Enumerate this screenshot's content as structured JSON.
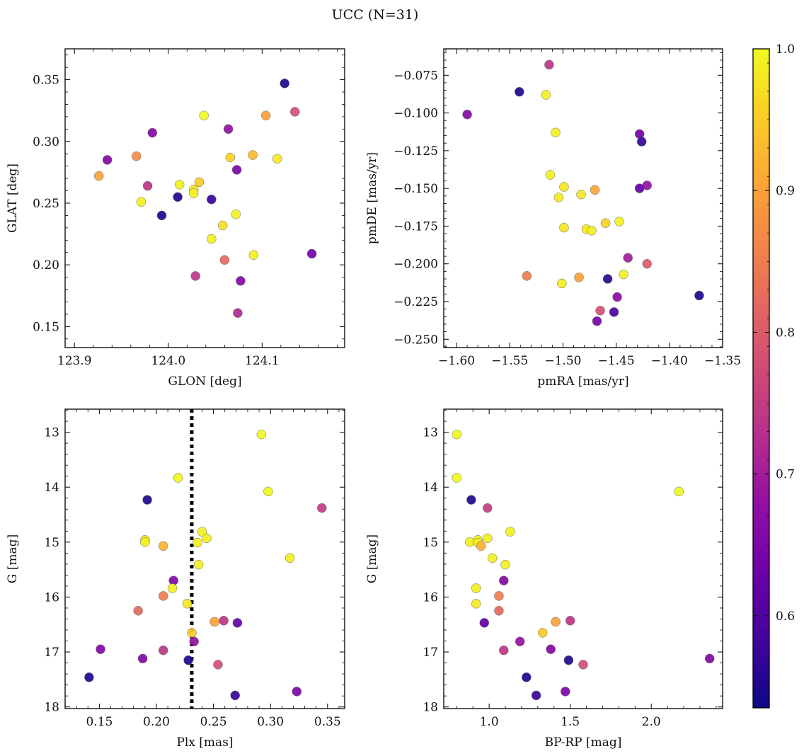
{
  "figure": {
    "title": "UCC (N=31)",
    "colorbar": {
      "min": 0.535,
      "max": 1.0,
      "ticks": [
        "0.6",
        "0.7",
        "0.8",
        "0.9",
        "1.0"
      ],
      "tick_values": [
        0.6,
        0.7,
        0.8,
        0.9,
        1.0
      ],
      "colormap": "plasma"
    }
  },
  "chart_data": [
    {
      "type": "scatter",
      "xlabel": "GLON [deg]",
      "ylabel": "GLAT [deg]",
      "xlim": [
        123.89,
        124.188
      ],
      "ylim": [
        0.133,
        0.375
      ],
      "y_inverted": false,
      "xticks": [
        123.9,
        124.0,
        124.1
      ],
      "xtick_labels": [
        "123.9",
        "124.0",
        "124.1"
      ],
      "yticks": [
        0.15,
        0.2,
        0.25,
        0.3,
        0.35
      ],
      "ytick_labels": [
        "0.15",
        "0.20",
        "0.25",
        "0.30",
        "0.35"
      ],
      "points": [
        {
          "x": 124.124,
          "y": 0.347,
          "c": 0.55
        },
        {
          "x": 124.135,
          "y": 0.324,
          "c": 0.78
        },
        {
          "x": 124.038,
          "y": 0.321,
          "c": 1.0
        },
        {
          "x": 124.104,
          "y": 0.321,
          "c": 0.9
        },
        {
          "x": 124.064,
          "y": 0.31,
          "c": 0.68
        },
        {
          "x": 123.983,
          "y": 0.307,
          "c": 0.66
        },
        {
          "x": 124.09,
          "y": 0.289,
          "c": 0.93
        },
        {
          "x": 123.966,
          "y": 0.288,
          "c": 0.87
        },
        {
          "x": 124.066,
          "y": 0.287,
          "c": 0.96
        },
        {
          "x": 124.116,
          "y": 0.286,
          "c": 0.98
        },
        {
          "x": 123.935,
          "y": 0.285,
          "c": 0.66
        },
        {
          "x": 124.073,
          "y": 0.277,
          "c": 0.65
        },
        {
          "x": 123.926,
          "y": 0.272,
          "c": 0.9
        },
        {
          "x": 124.033,
          "y": 0.267,
          "c": 0.95
        },
        {
          "x": 124.012,
          "y": 0.265,
          "c": 0.99
        },
        {
          "x": 123.978,
          "y": 0.264,
          "c": 0.74
        },
        {
          "x": 124.027,
          "y": 0.261,
          "c": 0.98
        },
        {
          "x": 124.027,
          "y": 0.258,
          "c": 0.99
        },
        {
          "x": 124.01,
          "y": 0.255,
          "c": 0.55
        },
        {
          "x": 124.046,
          "y": 0.253,
          "c": 0.57
        },
        {
          "x": 123.971,
          "y": 0.251,
          "c": 0.99
        },
        {
          "x": 124.072,
          "y": 0.241,
          "c": 0.99
        },
        {
          "x": 123.993,
          "y": 0.24,
          "c": 0.55
        },
        {
          "x": 124.058,
          "y": 0.232,
          "c": 0.97
        },
        {
          "x": 124.046,
          "y": 0.221,
          "c": 0.99
        },
        {
          "x": 124.153,
          "y": 0.209,
          "c": 0.64
        },
        {
          "x": 124.091,
          "y": 0.208,
          "c": 0.99
        },
        {
          "x": 124.06,
          "y": 0.204,
          "c": 0.82
        },
        {
          "x": 124.029,
          "y": 0.191,
          "c": 0.74
        },
        {
          "x": 124.077,
          "y": 0.187,
          "c": 0.66
        },
        {
          "x": 124.074,
          "y": 0.161,
          "c": 0.72
        }
      ]
    },
    {
      "type": "scatter",
      "xlabel": "pmRA [mas/yr]",
      "ylabel": "pmDE [mas/yr]",
      "xlim": [
        -1.612,
        -1.35
      ],
      "ylim": [
        -0.2555,
        -0.0575
      ],
      "y_inverted": false,
      "xticks": [
        -1.6,
        -1.55,
        -1.5,
        -1.45,
        -1.4,
        -1.35
      ],
      "xtick_labels": [
        "−1.60",
        "−1.55",
        "−1.50",
        "−1.45",
        "−1.40",
        "−1.35"
      ],
      "yticks": [
        -0.075,
        -0.1,
        -0.125,
        -0.15,
        -0.175,
        -0.2,
        -0.225,
        -0.25
      ],
      "ytick_labels": [
        "−0.075",
        "−0.100",
        "−0.125",
        "−0.150",
        "−0.175",
        "−0.200",
        "−0.225",
        "−0.250"
      ],
      "points": [
        {
          "x": -1.513,
          "y": -0.068,
          "c": 0.74
        },
        {
          "x": -1.541,
          "y": -0.086,
          "c": 0.55
        },
        {
          "x": -1.516,
          "y": -0.088,
          "c": 0.99
        },
        {
          "x": -1.59,
          "y": -0.101,
          "c": 0.66
        },
        {
          "x": -1.507,
          "y": -0.113,
          "c": 0.99
        },
        {
          "x": -1.428,
          "y": -0.114,
          "c": 0.64
        },
        {
          "x": -1.426,
          "y": -0.119,
          "c": 0.57
        },
        {
          "x": -1.512,
          "y": -0.141,
          "c": 0.99
        },
        {
          "x": -1.421,
          "y": -0.148,
          "c": 0.68
        },
        {
          "x": -1.428,
          "y": -0.15,
          "c": 0.62
        },
        {
          "x": -1.499,
          "y": -0.149,
          "c": 0.98
        },
        {
          "x": -1.47,
          "y": -0.151,
          "c": 0.9
        },
        {
          "x": -1.483,
          "y": -0.154,
          "c": 0.98
        },
        {
          "x": -1.504,
          "y": -0.156,
          "c": 0.98
        },
        {
          "x": -1.46,
          "y": -0.173,
          "c": 0.96
        },
        {
          "x": -1.447,
          "y": -0.172,
          "c": 0.99
        },
        {
          "x": -1.499,
          "y": -0.176,
          "c": 0.98
        },
        {
          "x": -1.478,
          "y": -0.177,
          "c": 0.98
        },
        {
          "x": -1.473,
          "y": -0.178,
          "c": 0.99
        },
        {
          "x": -1.439,
          "y": -0.196,
          "c": 0.7
        },
        {
          "x": -1.421,
          "y": -0.2,
          "c": 0.8
        },
        {
          "x": -1.443,
          "y": -0.207,
          "c": 0.99
        },
        {
          "x": -1.534,
          "y": -0.208,
          "c": 0.85
        },
        {
          "x": -1.485,
          "y": -0.209,
          "c": 0.9
        },
        {
          "x": -1.458,
          "y": -0.21,
          "c": 0.56
        },
        {
          "x": -1.501,
          "y": -0.213,
          "c": 0.99
        },
        {
          "x": -1.372,
          "y": -0.221,
          "c": 0.55
        },
        {
          "x": -1.449,
          "y": -0.222,
          "c": 0.67
        },
        {
          "x": -1.465,
          "y": -0.231,
          "c": 0.78
        },
        {
          "x": -1.452,
          "y": -0.232,
          "c": 0.6
        },
        {
          "x": -1.468,
          "y": -0.238,
          "c": 0.64
        }
      ]
    },
    {
      "type": "scatter",
      "xlabel": "Plx [mas]",
      "ylabel": "G [mag]",
      "xlim": [
        0.12,
        0.365
      ],
      "ylim": [
        18.03,
        12.58
      ],
      "y_inverted": true,
      "vline": {
        "x": 0.231,
        "style": "dotted"
      },
      "xticks": [
        0.15,
        0.2,
        0.25,
        0.3,
        0.35
      ],
      "xtick_labels": [
        "0.15",
        "0.20",
        "0.25",
        "0.30",
        "0.35"
      ],
      "yticks": [
        13,
        14,
        15,
        16,
        17,
        18
      ],
      "ytick_labels": [
        "13",
        "14",
        "15",
        "16",
        "17",
        "18"
      ],
      "points": [
        {
          "x": 0.292,
          "y": 13.04,
          "c": 1.0
        },
        {
          "x": 0.219,
          "y": 13.83,
          "c": 1.0
        },
        {
          "x": 0.298,
          "y": 14.08,
          "c": 1.0
        },
        {
          "x": 0.192,
          "y": 14.23,
          "c": 0.55
        },
        {
          "x": 0.345,
          "y": 14.38,
          "c": 0.75
        },
        {
          "x": 0.24,
          "y": 14.81,
          "c": 0.99
        },
        {
          "x": 0.244,
          "y": 14.93,
          "c": 0.99
        },
        {
          "x": 0.19,
          "y": 14.96,
          "c": 0.99
        },
        {
          "x": 0.19,
          "y": 15.0,
          "c": 0.99
        },
        {
          "x": 0.236,
          "y": 15.01,
          "c": 0.99
        },
        {
          "x": 0.206,
          "y": 15.07,
          "c": 0.92
        },
        {
          "x": 0.317,
          "y": 15.29,
          "c": 0.99
        },
        {
          "x": 0.237,
          "y": 15.41,
          "c": 0.99
        },
        {
          "x": 0.215,
          "y": 15.7,
          "c": 0.66
        },
        {
          "x": 0.214,
          "y": 15.84,
          "c": 0.99
        },
        {
          "x": 0.206,
          "y": 15.98,
          "c": 0.85
        },
        {
          "x": 0.227,
          "y": 16.12,
          "c": 0.98
        },
        {
          "x": 0.184,
          "y": 16.25,
          "c": 0.82
        },
        {
          "x": 0.259,
          "y": 16.43,
          "c": 0.74
        },
        {
          "x": 0.251,
          "y": 16.45,
          "c": 0.9
        },
        {
          "x": 0.271,
          "y": 16.47,
          "c": 0.62
        },
        {
          "x": 0.231,
          "y": 16.65,
          "c": 0.95
        },
        {
          "x": 0.233,
          "y": 16.81,
          "c": 0.68
        },
        {
          "x": 0.151,
          "y": 16.95,
          "c": 0.66
        },
        {
          "x": 0.206,
          "y": 16.97,
          "c": 0.74
        },
        {
          "x": 0.188,
          "y": 17.12,
          "c": 0.66
        },
        {
          "x": 0.228,
          "y": 17.15,
          "c": 0.55
        },
        {
          "x": 0.254,
          "y": 17.23,
          "c": 0.78
        },
        {
          "x": 0.141,
          "y": 17.46,
          "c": 0.55
        },
        {
          "x": 0.323,
          "y": 17.72,
          "c": 0.65
        },
        {
          "x": 0.269,
          "y": 17.79,
          "c": 0.57
        }
      ]
    },
    {
      "type": "scatter",
      "xlabel": "BP-RP [mag]",
      "ylabel": "G [mag]",
      "xlim": [
        0.72,
        2.44
      ],
      "ylim": [
        18.03,
        12.58
      ],
      "y_inverted": true,
      "xticks": [
        1.0,
        1.5,
        2.0
      ],
      "xtick_labels": [
        "1.0",
        "1.5",
        "2.0"
      ],
      "yticks": [
        13,
        14,
        15,
        16,
        17,
        18
      ],
      "ytick_labels": [
        "13",
        "14",
        "15",
        "16",
        "17",
        "18"
      ],
      "points": [
        {
          "x": 0.8,
          "y": 13.04,
          "c": 1.0
        },
        {
          "x": 0.8,
          "y": 13.83,
          "c": 1.0
        },
        {
          "x": 2.17,
          "y": 14.08,
          "c": 1.0
        },
        {
          "x": 0.89,
          "y": 14.23,
          "c": 0.55
        },
        {
          "x": 0.99,
          "y": 14.38,
          "c": 0.75
        },
        {
          "x": 1.13,
          "y": 14.81,
          "c": 0.99
        },
        {
          "x": 0.99,
          "y": 14.93,
          "c": 0.99
        },
        {
          "x": 0.93,
          "y": 14.96,
          "c": 0.99
        },
        {
          "x": 0.88,
          "y": 15.0,
          "c": 0.99
        },
        {
          "x": 0.93,
          "y": 15.01,
          "c": 0.99
        },
        {
          "x": 0.95,
          "y": 15.07,
          "c": 0.92
        },
        {
          "x": 1.02,
          "y": 15.29,
          "c": 0.99
        },
        {
          "x": 1.1,
          "y": 15.41,
          "c": 0.99
        },
        {
          "x": 1.09,
          "y": 15.7,
          "c": 0.66
        },
        {
          "x": 0.92,
          "y": 15.84,
          "c": 0.99
        },
        {
          "x": 1.06,
          "y": 15.98,
          "c": 0.85
        },
        {
          "x": 0.92,
          "y": 16.12,
          "c": 0.98
        },
        {
          "x": 1.06,
          "y": 16.25,
          "c": 0.82
        },
        {
          "x": 1.5,
          "y": 16.43,
          "c": 0.74
        },
        {
          "x": 1.41,
          "y": 16.45,
          "c": 0.9
        },
        {
          "x": 0.97,
          "y": 16.47,
          "c": 0.62
        },
        {
          "x": 1.33,
          "y": 16.65,
          "c": 0.95
        },
        {
          "x": 1.19,
          "y": 16.81,
          "c": 0.68
        },
        {
          "x": 1.38,
          "y": 16.95,
          "c": 0.66
        },
        {
          "x": 1.09,
          "y": 16.97,
          "c": 0.74
        },
        {
          "x": 2.36,
          "y": 17.12,
          "c": 0.66
        },
        {
          "x": 1.49,
          "y": 17.15,
          "c": 0.55
        },
        {
          "x": 1.58,
          "y": 17.23,
          "c": 0.78
        },
        {
          "x": 1.23,
          "y": 17.46,
          "c": 0.55
        },
        {
          "x": 1.47,
          "y": 17.72,
          "c": 0.65
        },
        {
          "x": 1.29,
          "y": 17.79,
          "c": 0.57
        }
      ]
    }
  ]
}
